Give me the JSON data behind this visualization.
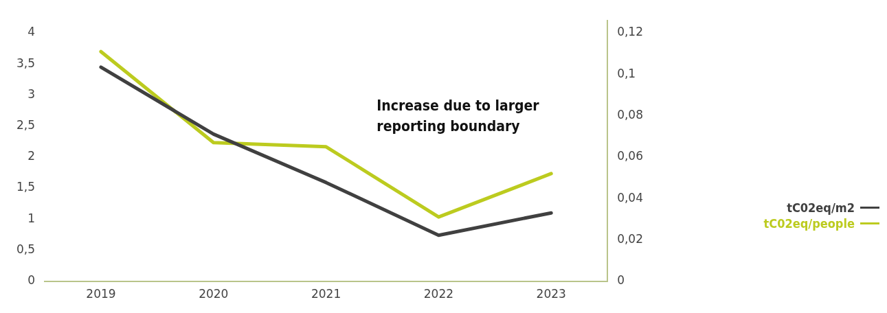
{
  "chart_data": {
    "type": "line",
    "categories": [
      "2019",
      "2020",
      "2021",
      "2022",
      "2023"
    ],
    "series": [
      {
        "name": "tC02eq/m2",
        "color": "#404040",
        "values": [
          3.45,
          2.37,
          1.59,
          0.74,
          1.1
        ]
      },
      {
        "name": "tC02eq/people",
        "color": "#bccb1f",
        "values": [
          0.111,
          0.067,
          0.065,
          0.031,
          0.052
        ],
        "axis": "y2"
      }
    ],
    "ylim": [
      0,
      4.2
    ],
    "yticks": [
      0,
      {
        "value": 0.5,
        "label": "0,5"
      },
      1,
      {
        "value": 1.5,
        "label": "1,5"
      },
      2,
      {
        "value": 2.5,
        "label": "2,5"
      },
      3,
      {
        "value": 3.5,
        "label": "3,5"
      },
      4
    ],
    "y2lim": [
      0,
      0.126
    ],
    "y2ticks": [
      0,
      {
        "value": 0.02,
        "label": "0,02"
      },
      {
        "value": 0.04,
        "label": "0,04"
      },
      {
        "value": 0.06,
        "label": "0,06"
      },
      {
        "value": 0.08,
        "label": "0,08"
      },
      {
        "value": 0.1,
        "label": "0,1"
      },
      {
        "value": 0.12,
        "label": "0,12"
      }
    ],
    "annotations": [
      "Increase due to larger reporting boundary"
    ],
    "legend": "right",
    "grid": false,
    "marker": "none",
    "line_style": "solid"
  }
}
